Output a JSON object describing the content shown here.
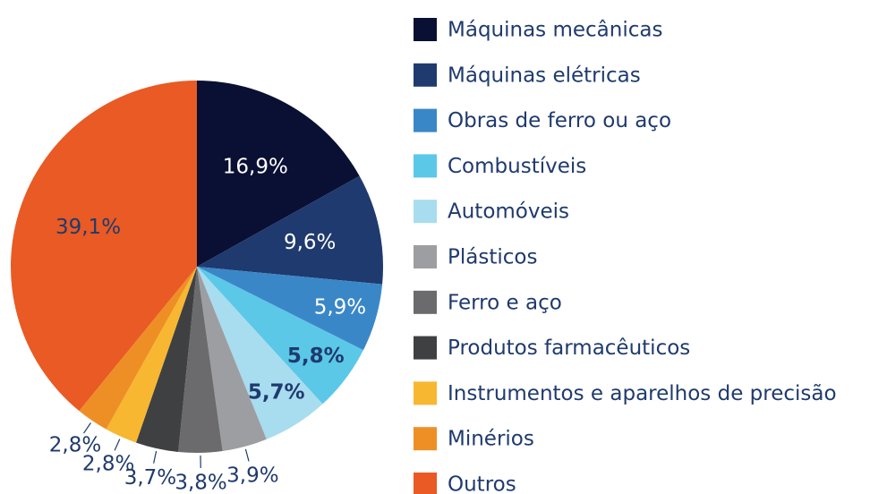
{
  "chart_data": {
    "type": "pie",
    "categories": [
      "Máquinas mecânicas",
      "Máquinas elétricas",
      "Obras de ferro ou aço",
      "Combustíveis",
      "Automóveis",
      "Plásticos",
      "Ferro e aço",
      "Produtos farmacêuticos",
      "Instrumentos e aparelhos de precisão",
      "Minérios",
      "Outros"
    ],
    "values": [
      16.9,
      9.6,
      5.9,
      5.8,
      5.7,
      3.9,
      3.8,
      3.7,
      2.8,
      2.8,
      39.1
    ],
    "value_labels": [
      "16,9%",
      "9,6%",
      "5,9%",
      "5,8%",
      "5,7%",
      "3,9%",
      "3,8%",
      "3,7%",
      "2,8%",
      "2,8%",
      "39,1%"
    ],
    "colors": [
      "#0a1033",
      "#1f3a6e",
      "#3a87c8",
      "#5bc8e8",
      "#a8dcef",
      "#9d9ea2",
      "#6b6b6d",
      "#3f4042",
      "#f7b731",
      "#ee8f25",
      "#e95a24"
    ],
    "legend": "right"
  }
}
